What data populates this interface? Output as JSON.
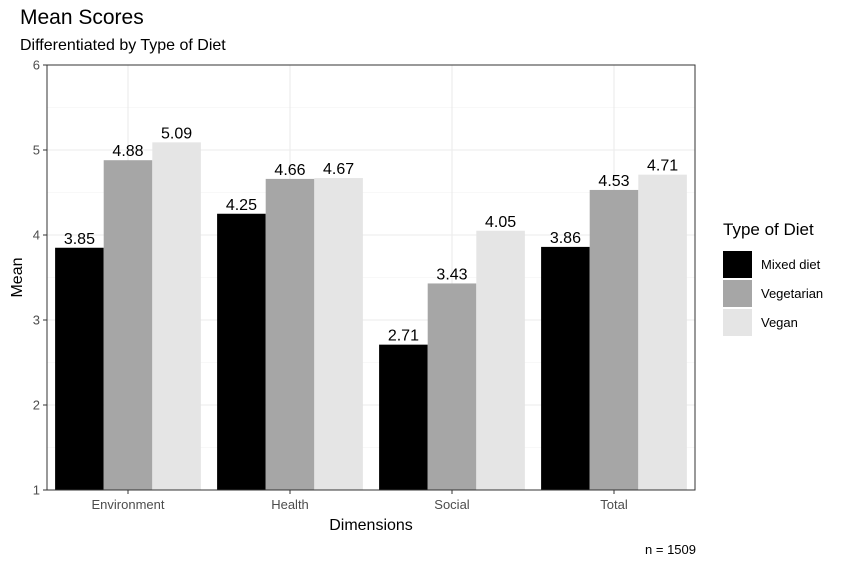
{
  "chart_data": {
    "type": "bar",
    "title": "Mean Scores",
    "subtitle": "Differentiated by Type of Diet",
    "xlabel": "Dimensions",
    "ylabel": "Mean",
    "caption": "n = 1509",
    "ylim": [
      1,
      6
    ],
    "yticks": [
      1,
      2,
      3,
      4,
      5,
      6
    ],
    "grid": true,
    "legend_position": "right",
    "legend_title": "Type of Diet",
    "categories": [
      "Environment",
      "Health",
      "Social",
      "Total"
    ],
    "series": [
      {
        "name": "Mixed diet",
        "color": "#000000",
        "values": [
          3.85,
          4.25,
          2.71,
          3.86
        ],
        "labels": [
          "3.85",
          "4.25",
          "2.71",
          "3.86"
        ]
      },
      {
        "name": "Vegetarian",
        "color": "#a6a6a6",
        "values": [
          4.88,
          4.66,
          3.43,
          4.53
        ],
        "labels": [
          "4.88",
          "4.66",
          "3.43",
          "4.53"
        ]
      },
      {
        "name": "Vegan",
        "color": "#e5e5e5",
        "values": [
          5.09,
          4.67,
          4.05,
          4.71
        ],
        "labels": [
          "5.09",
          "4.67",
          "4.05",
          "4.71"
        ]
      }
    ]
  }
}
